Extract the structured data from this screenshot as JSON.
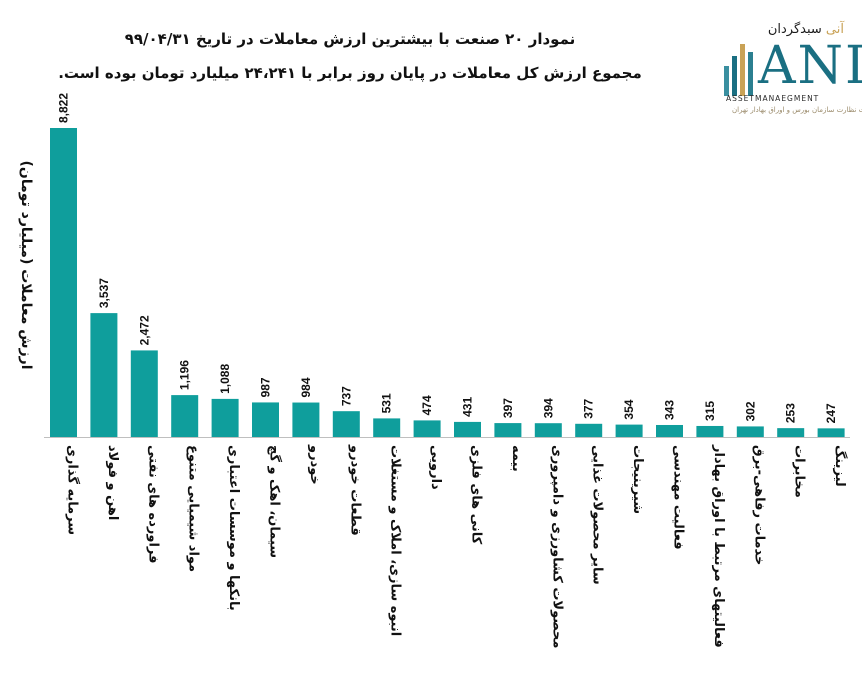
{
  "header": {
    "title": "نمودار ۲۰ صنعت با بیشترین ارزش معاملات در تاریخ ۹۹/۰۴/۳۱",
    "subtitle": "مجموع ارزش کل معاملات در پایان روز برابر با ۲۴،۲۴۱ میلیارد تومان بوده است."
  },
  "logo": {
    "brand_main": "سبدگردان",
    "brand_accent": "آنی",
    "mark": "ANI",
    "sub": "ASSETMANAEGMENT",
    "sub2": "تحت نظارت سازمان بورس و اوراق بهادار تهران"
  },
  "chart_data": {
    "type": "bar",
    "ylabel": "ارزش معاملات (میلیارد تومان)",
    "bar_color": "#0f9e9c",
    "categories": [
      "سرمایه گذاری",
      "اهن و فولاد",
      "فراورده های نفتی",
      "مواد شیمیایی متنوع",
      "بانکها و موسسات اعتباری",
      "سیمان، اهک و گچ",
      "خودرو",
      "قطعات خودرو",
      "انبوه سازی، املاک و مستغلات",
      "دارویی",
      "کانی های فلزی",
      "بیمه",
      "محصولات کشاورزی و دامپروری",
      "سایر محصولات غذایی",
      "شیرینیجات",
      "فعالیت مهندسی",
      "فعالیتهای مرتبط با اوراق بهادار",
      "خدمات رفاهی-برق",
      "مخابرات",
      "لیزینگ"
    ],
    "values": [
      8822,
      3537,
      2472,
      1196,
      1088,
      987,
      984,
      737,
      531,
      474,
      431,
      397,
      394,
      377,
      354,
      343,
      315,
      302,
      253,
      247
    ],
    "labels": [
      "8,822",
      "3,537",
      "2,472",
      "1,196",
      "1,088",
      "987",
      "984",
      "737",
      "531",
      "474",
      "431",
      "397",
      "394",
      "377",
      "354",
      "343",
      "315",
      "302",
      "253",
      "247"
    ]
  }
}
